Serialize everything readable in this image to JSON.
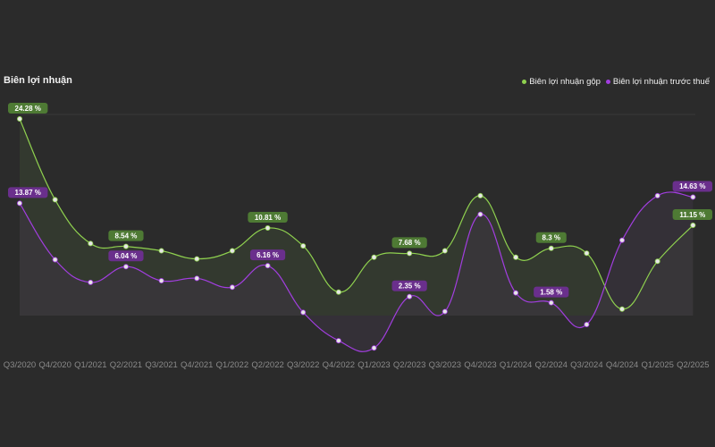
{
  "chart_data": {
    "type": "line",
    "title": "Biên lợi nhuận",
    "categories": [
      "Q3/2020",
      "Q4/2020",
      "Q1/2021",
      "Q2/2021",
      "Q3/2021",
      "Q4/2021",
      "Q1/2022",
      "Q2/2022",
      "Q3/2022",
      "Q4/2022",
      "Q1/2023",
      "Q2/2023",
      "Q3/2023",
      "Q4/2023",
      "Q1/2024",
      "Q2/2024",
      "Q3/2024",
      "Q4/2024",
      "Q1/2025",
      "Q2/2025"
    ],
    "series": [
      {
        "name": "Biên lợi nhuận gộp",
        "color": "#8fd14f",
        "fill": "#3a4533",
        "label_bg": "#4e7a34",
        "values": [
          24.28,
          14.3,
          8.9,
          8.54,
          8.0,
          7.0,
          8.0,
          10.81,
          8.6,
          2.9,
          7.2,
          7.68,
          8.0,
          14.8,
          7.2,
          8.3,
          7.7,
          0.8,
          6.7,
          11.15
        ],
        "labels": {
          "0": "24.28 %",
          "3": "8.54 %",
          "7": "10.81 %",
          "11": "7.68 %",
          "15": "8.3 %",
          "19": "11.15 %"
        }
      },
      {
        "name": "Biên lợi nhuận trước thuế",
        "color": "#a23ee0",
        "fill": "#3c3542",
        "label_bg": "#6a2f8c",
        "values": [
          13.87,
          6.9,
          4.1,
          6.04,
          4.3,
          4.6,
          3.5,
          6.16,
          0.4,
          -3.1,
          -4.0,
          2.35,
          0.5,
          12.5,
          2.8,
          1.58,
          -1.1,
          9.3,
          14.8,
          14.63
        ],
        "labels": {
          "0": "13.87 %",
          "3": "6.04 %",
          "7": "6.16 %",
          "11": "2.35 %",
          "15": "1.58 %",
          "19": "14.63 %"
        }
      }
    ],
    "ylim": [
      -6,
      26
    ],
    "legend_position": "top-right"
  }
}
